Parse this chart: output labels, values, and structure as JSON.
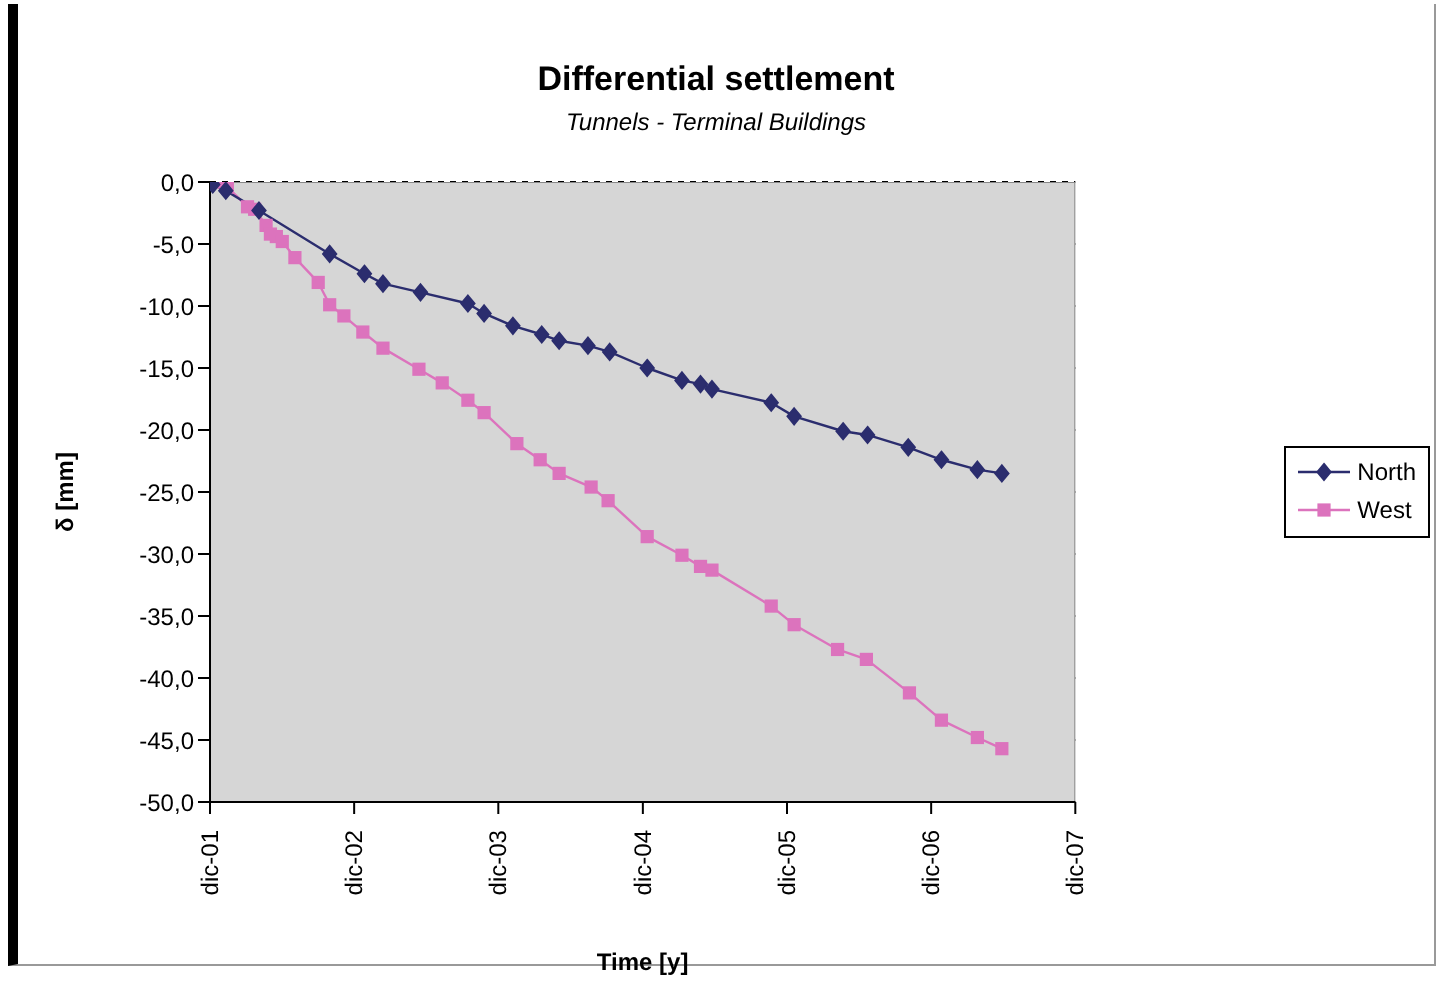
{
  "chart_data": {
    "type": "line",
    "title": "Differential settlement",
    "subtitle": "Tunnels - Terminal Buildings",
    "xlabel": "Time [y]",
    "ylabel": "δ [mm]",
    "xlim": [
      "2001-12-01",
      "2007-12-01"
    ],
    "xticks": [
      {
        "value": "2001-12-01",
        "label": "dic-01"
      },
      {
        "value": "2002-12-01",
        "label": "dic-02"
      },
      {
        "value": "2003-12-01",
        "label": "dic-03"
      },
      {
        "value": "2004-12-01",
        "label": "dic-04"
      },
      {
        "value": "2005-12-01",
        "label": "dic-05"
      },
      {
        "value": "2006-12-01",
        "label": "dic-06"
      },
      {
        "value": "2007-12-01",
        "label": "dic-07"
      }
    ],
    "ylim": [
      -50,
      0
    ],
    "yticks": [
      {
        "value": 0,
        "label": "0,0"
      },
      {
        "value": -5,
        "label": "-5,0"
      },
      {
        "value": -10,
        "label": "-10,0"
      },
      {
        "value": -15,
        "label": "-15,0"
      },
      {
        "value": -20,
        "label": "-20,0"
      },
      {
        "value": -25,
        "label": "-25,0"
      },
      {
        "value": -30,
        "label": "-30,0"
      },
      {
        "value": -35,
        "label": "-35,0"
      },
      {
        "value": -40,
        "label": "-40,0"
      },
      {
        "value": -45,
        "label": "-45,0"
      },
      {
        "value": -50,
        "label": "-50,0"
      }
    ],
    "grid": "y",
    "legend": "right",
    "line_style": "solid",
    "series": [
      {
        "name": "North",
        "color": "#2b2d6e",
        "marker": "diamond",
        "x": [
          "2001-12-08",
          "2002-01-10",
          "2002-04-04",
          "2002-09-30",
          "2002-12-27",
          "2003-02-12",
          "2003-05-18",
          "2003-09-15",
          "2003-10-26",
          "2004-01-07",
          "2004-03-20",
          "2004-05-03",
          "2004-07-15",
          "2004-09-08",
          "2004-12-12",
          "2005-03-10",
          "2005-04-26",
          "2005-05-25",
          "2005-10-22",
          "2005-12-19",
          "2006-04-22",
          "2006-06-23",
          "2006-10-04",
          "2006-12-27",
          "2007-03-28",
          "2007-05-29"
        ],
        "values": [
          -0.2,
          -0.7,
          -2.3,
          -5.8,
          -7.4,
          -8.2,
          -8.9,
          -9.8,
          -10.6,
          -11.6,
          -12.3,
          -12.8,
          -13.2,
          -13.7,
          -15.0,
          -16.0,
          -16.3,
          -16.7,
          -17.8,
          -18.9,
          -20.1,
          -20.4,
          -21.4,
          -22.4,
          -23.2,
          -23.5
        ]
      },
      {
        "name": "West",
        "color": "#dc73bd",
        "marker": "square",
        "x": [
          "2001-12-16",
          "2002-01-14",
          "2002-03-06",
          "2002-03-24",
          "2002-04-22",
          "2002-05-03",
          "2002-05-18",
          "2002-06-02",
          "2002-07-04",
          "2002-09-01",
          "2002-09-30",
          "2002-11-05",
          "2002-12-23",
          "2003-02-12",
          "2003-05-14",
          "2003-07-12",
          "2003-09-15",
          "2003-10-26",
          "2004-01-17",
          "2004-03-16",
          "2004-05-03",
          "2004-07-23",
          "2004-09-04",
          "2004-12-12",
          "2005-03-10",
          "2005-04-26",
          "2005-05-25",
          "2005-10-22",
          "2005-12-19",
          "2006-04-08",
          "2006-06-20",
          "2006-10-07",
          "2006-12-27",
          "2007-03-28",
          "2007-05-29"
        ],
        "values": [
          0.0,
          -0.4,
          -2.0,
          -2.2,
          -3.5,
          -4.2,
          -4.4,
          -4.8,
          -6.1,
          -8.1,
          -9.9,
          -10.8,
          -12.1,
          -13.4,
          -15.1,
          -16.2,
          -17.6,
          -18.6,
          -21.1,
          -22.4,
          -23.5,
          -24.6,
          -25.7,
          -28.6,
          -30.1,
          -31.0,
          -31.3,
          -34.2,
          -35.7,
          -37.7,
          -38.5,
          -41.2,
          -43.4,
          -44.8,
          -45.7
        ]
      }
    ]
  }
}
